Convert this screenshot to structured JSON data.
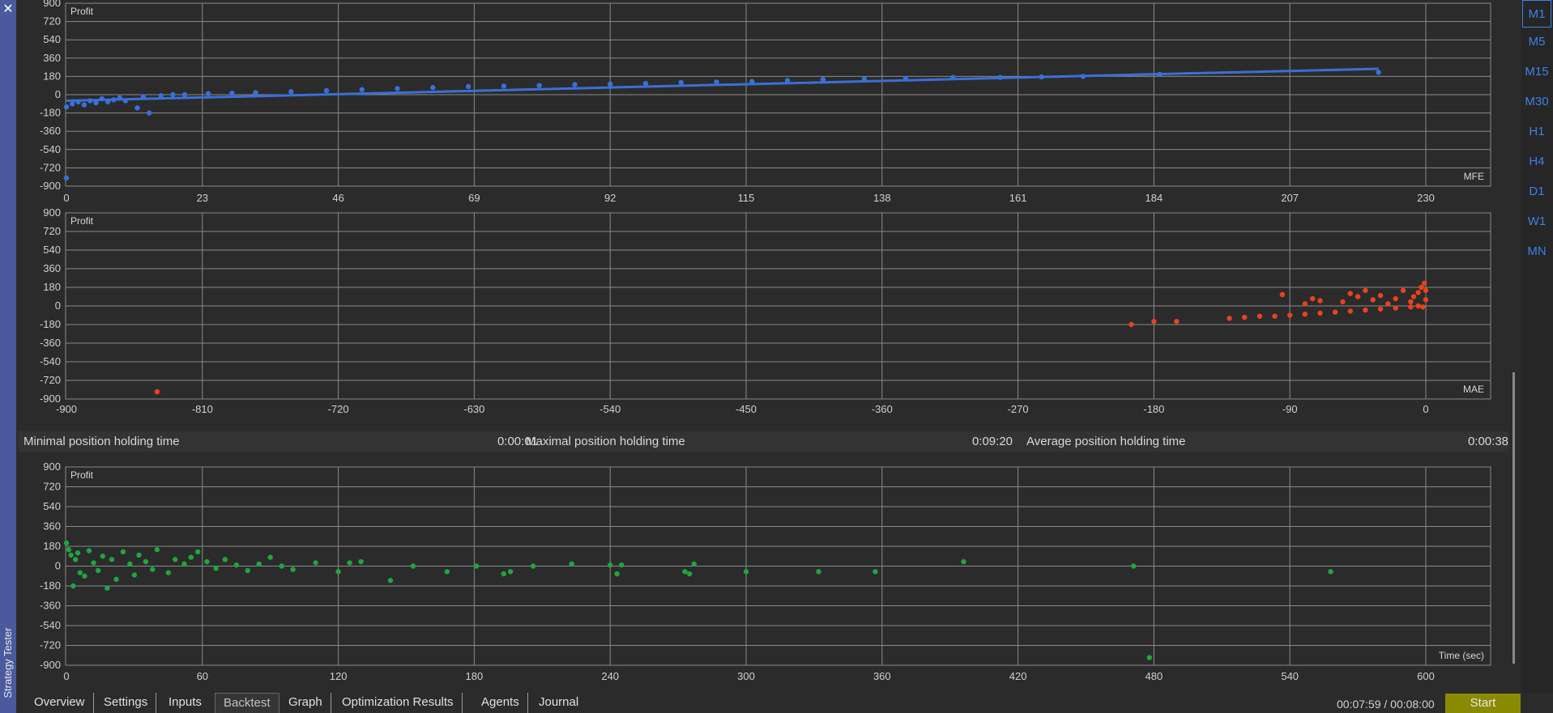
{
  "window": {
    "title": "Strategy Tester",
    "close_label": "✕"
  },
  "timeframes": [
    {
      "label": "M1",
      "active": true
    },
    {
      "label": "M5"
    },
    {
      "label": "M15"
    },
    {
      "label": "M30"
    },
    {
      "label": "H1"
    },
    {
      "label": "H4"
    },
    {
      "label": "D1"
    },
    {
      "label": "W1"
    },
    {
      "label": "MN"
    }
  ],
  "stats": {
    "min_label": "Minimal position holding time",
    "min_value": "0:00:01",
    "max_label": "Maximal position holding time",
    "max_value": "0:09:20",
    "avg_label": "Average position holding time",
    "avg_value": "0:00:38"
  },
  "tabs": [
    {
      "label": "Overview"
    },
    {
      "label": "Settings"
    },
    {
      "label": "Inputs"
    },
    {
      "label": "Backtest",
      "active": true
    },
    {
      "label": "Graph"
    },
    {
      "label": "Optimization Results"
    },
    {
      "label": "Agents"
    },
    {
      "label": "Journal"
    }
  ],
  "timer": "00:07:59 / 00:08:00",
  "start_label": "Start",
  "colors": {
    "mfe": "#3a6fd8",
    "mae": "#e8431e",
    "time": "#1fa63c",
    "grid": "#8a8a8a",
    "start": "#8a8a00"
  },
  "chart_data": [
    {
      "type": "scatter",
      "ylabel": "Profit",
      "series_label": "MFE",
      "color": "#3a6fd8",
      "xlim": [
        0,
        235
      ],
      "ylim": [
        -900,
        900
      ],
      "x_ticks": [
        0,
        23,
        46,
        69,
        92,
        115,
        138,
        161,
        184,
        207,
        230
      ],
      "y_ticks": [
        900,
        720,
        540,
        360,
        180,
        0,
        -180,
        -360,
        -540,
        -720,
        -900
      ],
      "trend": {
        "x": [
          0,
          222
        ],
        "y": [
          -60,
          255
        ]
      },
      "points": [
        [
          0,
          -820
        ],
        [
          0,
          -120
        ],
        [
          1,
          -90
        ],
        [
          2,
          -70
        ],
        [
          3,
          -100
        ],
        [
          4,
          -60
        ],
        [
          5,
          -80
        ],
        [
          6,
          -40
        ],
        [
          7,
          -70
        ],
        [
          8,
          -50
        ],
        [
          9,
          -30
        ],
        [
          10,
          -60
        ],
        [
          12,
          -130
        ],
        [
          13,
          -20
        ],
        [
          14,
          -180
        ],
        [
          16,
          -10
        ],
        [
          18,
          0
        ],
        [
          20,
          0
        ],
        [
          24,
          10
        ],
        [
          28,
          15
        ],
        [
          32,
          20
        ],
        [
          38,
          30
        ],
        [
          44,
          40
        ],
        [
          50,
          50
        ],
        [
          56,
          60
        ],
        [
          62,
          70
        ],
        [
          68,
          80
        ],
        [
          74,
          85
        ],
        [
          80,
          90
        ],
        [
          86,
          100
        ],
        [
          92,
          105
        ],
        [
          98,
          110
        ],
        [
          104,
          120
        ],
        [
          110,
          125
        ],
        [
          116,
          130
        ],
        [
          122,
          140
        ],
        [
          128,
          150
        ],
        [
          135,
          155
        ],
        [
          142,
          160
        ],
        [
          150,
          170
        ],
        [
          158,
          170
        ],
        [
          165,
          175
        ],
        [
          172,
          180
        ],
        [
          185,
          200
        ],
        [
          222,
          220
        ]
      ]
    },
    {
      "type": "scatter",
      "ylabel": "Profit",
      "series_label": "MAE",
      "color": "#e8431e",
      "xlim": [
        -900,
        0
      ],
      "ylim": [
        -900,
        900
      ],
      "x_ticks": [
        -900,
        -810,
        -720,
        -630,
        -540,
        -450,
        -360,
        -270,
        -180,
        -90,
        0
      ],
      "y_ticks": [
        900,
        720,
        540,
        360,
        180,
        0,
        -180,
        -360,
        -540,
        -720,
        -900
      ],
      "points": [
        [
          -840,
          -830
        ],
        [
          -195,
          -180
        ],
        [
          -180,
          -150
        ],
        [
          -165,
          -150
        ],
        [
          -130,
          -120
        ],
        [
          -120,
          -110
        ],
        [
          -110,
          -100
        ],
        [
          -100,
          -100
        ],
        [
          -95,
          110
        ],
        [
          -90,
          -90
        ],
        [
          -80,
          -80
        ],
        [
          -70,
          -70
        ],
        [
          -80,
          20
        ],
        [
          -75,
          70
        ],
        [
          -70,
          50
        ],
        [
          -60,
          -60
        ],
        [
          -55,
          40
        ],
        [
          -50,
          -50
        ],
        [
          -50,
          120
        ],
        [
          -45,
          90
        ],
        [
          -40,
          -40
        ],
        [
          -40,
          150
        ],
        [
          -35,
          60
        ],
        [
          -30,
          -30
        ],
        [
          -30,
          100
        ],
        [
          -25,
          20
        ],
        [
          -20,
          -20
        ],
        [
          -20,
          70
        ],
        [
          -15,
          150
        ],
        [
          -10,
          -10
        ],
        [
          -10,
          40
        ],
        [
          -8,
          90
        ],
        [
          -5,
          0
        ],
        [
          -5,
          130
        ],
        [
          -3,
          180
        ],
        [
          -2,
          -10
        ],
        [
          -1,
          220
        ],
        [
          0,
          60
        ],
        [
          0,
          150
        ]
      ]
    },
    {
      "type": "scatter",
      "ylabel": "Profit",
      "xlabel": "Time (sec)",
      "color": "#1fa63c",
      "xlim": [
        0,
        630
      ],
      "ylim": [
        -900,
        900
      ],
      "x_ticks": [
        0,
        60,
        120,
        180,
        240,
        300,
        360,
        420,
        480,
        540,
        600
      ],
      "y_ticks": [
        900,
        720,
        540,
        360,
        180,
        0,
        -180,
        -360,
        -540,
        -720,
        -900
      ],
      "points": [
        [
          0,
          210
        ],
        [
          1,
          150
        ],
        [
          2,
          100
        ],
        [
          3,
          -180
        ],
        [
          4,
          60
        ],
        [
          5,
          120
        ],
        [
          6,
          -60
        ],
        [
          8,
          -90
        ],
        [
          10,
          140
        ],
        [
          12,
          30
        ],
        [
          14,
          -40
        ],
        [
          16,
          90
        ],
        [
          18,
          -200
        ],
        [
          20,
          60
        ],
        [
          22,
          -120
        ],
        [
          25,
          130
        ],
        [
          28,
          20
        ],
        [
          30,
          -80
        ],
        [
          32,
          100
        ],
        [
          35,
          40
        ],
        [
          38,
          -30
        ],
        [
          40,
          150
        ],
        [
          45,
          -60
        ],
        [
          48,
          60
        ],
        [
          52,
          20
        ],
        [
          55,
          80
        ],
        [
          58,
          130
        ],
        [
          62,
          40
        ],
        [
          66,
          -20
        ],
        [
          70,
          60
        ],
        [
          75,
          10
        ],
        [
          80,
          -40
        ],
        [
          85,
          20
        ],
        [
          90,
          80
        ],
        [
          95,
          0
        ],
        [
          100,
          -30
        ],
        [
          110,
          30
        ],
        [
          120,
          -50
        ],
        [
          125,
          30
        ],
        [
          130,
          40
        ],
        [
          143,
          -130
        ],
        [
          153,
          0
        ],
        [
          168,
          -50
        ],
        [
          181,
          0
        ],
        [
          193,
          -70
        ],
        [
          196,
          -50
        ],
        [
          206,
          0
        ],
        [
          223,
          20
        ],
        [
          240,
          10
        ],
        [
          243,
          -70
        ],
        [
          245,
          10
        ],
        [
          273,
          -50
        ],
        [
          275,
          -70
        ],
        [
          277,
          20
        ],
        [
          300,
          -50
        ],
        [
          332,
          -50
        ],
        [
          357,
          -50
        ],
        [
          396,
          40
        ],
        [
          471,
          0
        ],
        [
          478,
          -830
        ],
        [
          558,
          -50
        ]
      ]
    }
  ]
}
